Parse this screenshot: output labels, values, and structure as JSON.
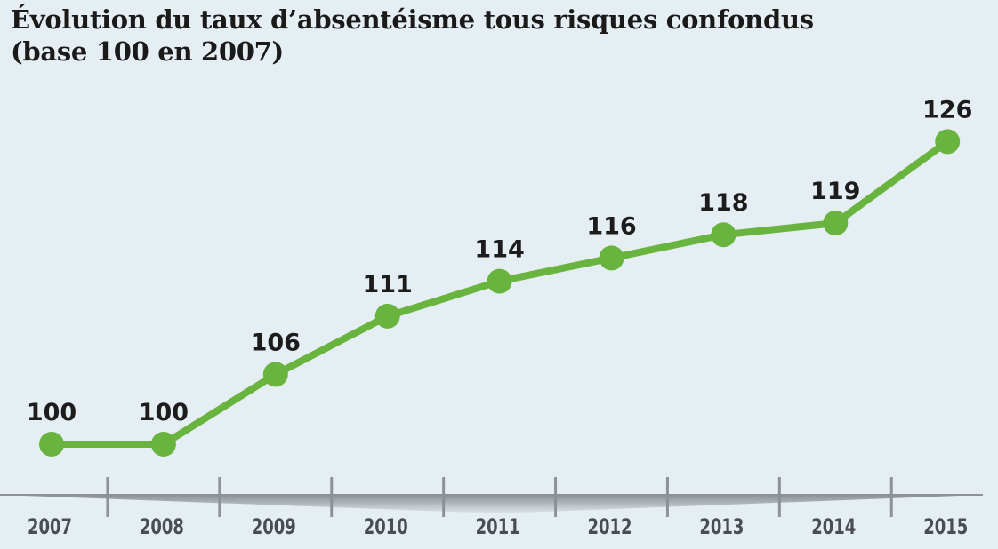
{
  "title_line1": "Évolution du taux d’absentéisme tous risques confondus",
  "title_line2": "(base 100 en 2007)",
  "colors": {
    "background": "#e5eef3",
    "line": "#68b43f",
    "axis": "#8d9297",
    "text": "#1c1c1c",
    "year_text": "#4a4d52"
  },
  "chart_data": {
    "type": "line",
    "title": "Évolution du taux d’absentéisme tous risques confondus (base 100 en 2007)",
    "xlabel": "",
    "ylabel": "",
    "categories": [
      "2007",
      "2008",
      "2009",
      "2010",
      "2011",
      "2012",
      "2013",
      "2014",
      "2015"
    ],
    "series": [
      {
        "name": "Taux d’absentéisme (base 100 en 2007)",
        "values": [
          100,
          100,
          106,
          111,
          114,
          116,
          118,
          119,
          126
        ]
      }
    ],
    "data_labels": true,
    "grid": false,
    "legend": "none"
  }
}
